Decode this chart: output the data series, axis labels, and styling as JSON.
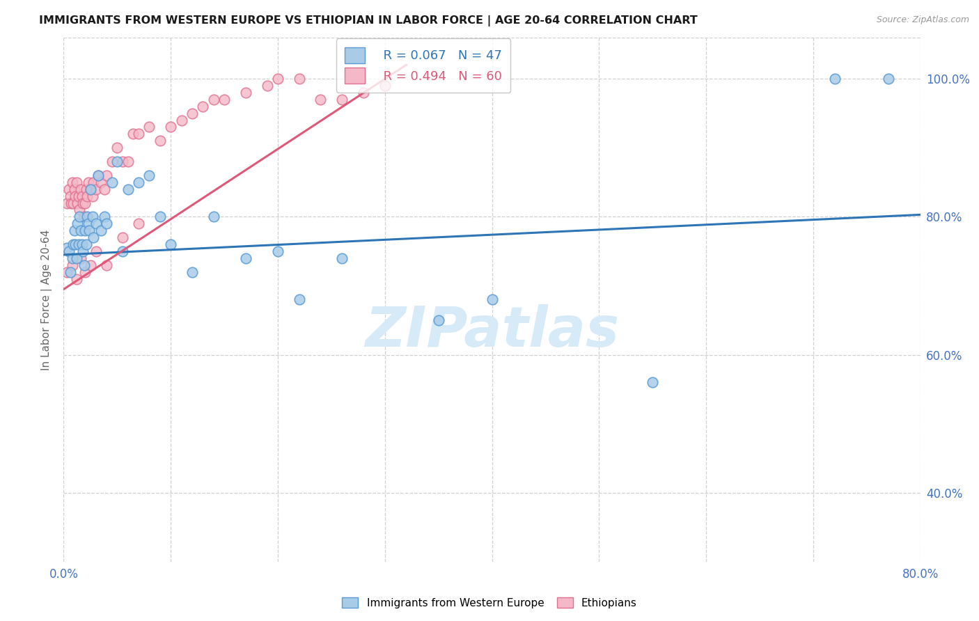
{
  "title": "IMMIGRANTS FROM WESTERN EUROPE VS ETHIOPIAN IN LABOR FORCE | AGE 20-64 CORRELATION CHART",
  "source": "Source: ZipAtlas.com",
  "ylabel": "In Labor Force | Age 20-64",
  "xlim": [
    0.0,
    0.8
  ],
  "ylim": [
    0.3,
    1.06
  ],
  "x_ticks": [
    0.0,
    0.1,
    0.2,
    0.3,
    0.4,
    0.5,
    0.6,
    0.7,
    0.8
  ],
  "x_tick_labels": [
    "0.0%",
    "",
    "",
    "",
    "",
    "",
    "",
    "",
    "80.0%"
  ],
  "y_ticks": [
    0.4,
    0.6,
    0.8,
    1.0
  ],
  "y_tick_labels": [
    "40.0%",
    "60.0%",
    "80.0%",
    "100.0%"
  ],
  "blue_fill": "#a8cce8",
  "blue_edge": "#5b9bd5",
  "pink_fill": "#f4b8c8",
  "pink_edge": "#e07090",
  "blue_line_color": "#2e75b6",
  "pink_line_color": "#e05878",
  "legend_text_blue_color": "#2e75b6",
  "legend_text_pink_color": "#e05878",
  "grid_color": "#d0d0d0",
  "axis_label_color": "#4472c4",
  "ylabel_color": "#666666",
  "title_color": "#1a1a1a",
  "source_color": "#999999",
  "watermark": "ZIPatlas",
  "watermark_color": "#d6eaf8",
  "background_color": "#ffffff",
  "blue_scatter_x": [
    0.003,
    0.005,
    0.006,
    0.008,
    0.009,
    0.01,
    0.011,
    0.012,
    0.013,
    0.014,
    0.015,
    0.016,
    0.017,
    0.018,
    0.019,
    0.02,
    0.021,
    0.022,
    0.023,
    0.024,
    0.025,
    0.027,
    0.028,
    0.03,
    0.032,
    0.035,
    0.038,
    0.04,
    0.045,
    0.05,
    0.055,
    0.06,
    0.07,
    0.08,
    0.09,
    0.1,
    0.12,
    0.14,
    0.17,
    0.2,
    0.22,
    0.26,
    0.35,
    0.4,
    0.55,
    0.72,
    0.77
  ],
  "blue_scatter_y": [
    0.755,
    0.75,
    0.72,
    0.74,
    0.76,
    0.78,
    0.76,
    0.74,
    0.79,
    0.76,
    0.8,
    0.78,
    0.76,
    0.75,
    0.73,
    0.78,
    0.76,
    0.8,
    0.79,
    0.78,
    0.84,
    0.8,
    0.77,
    0.79,
    0.86,
    0.78,
    0.8,
    0.79,
    0.85,
    0.88,
    0.75,
    0.84,
    0.85,
    0.86,
    0.8,
    0.76,
    0.72,
    0.8,
    0.74,
    0.75,
    0.68,
    0.74,
    0.65,
    0.68,
    0.56,
    1.0,
    1.0
  ],
  "pink_scatter_x": [
    0.003,
    0.005,
    0.006,
    0.007,
    0.008,
    0.009,
    0.01,
    0.011,
    0.012,
    0.013,
    0.014,
    0.015,
    0.016,
    0.017,
    0.018,
    0.019,
    0.02,
    0.021,
    0.022,
    0.023,
    0.025,
    0.027,
    0.028,
    0.03,
    0.032,
    0.035,
    0.038,
    0.04,
    0.045,
    0.05,
    0.055,
    0.06,
    0.065,
    0.07,
    0.08,
    0.09,
    0.1,
    0.11,
    0.12,
    0.13,
    0.14,
    0.15,
    0.17,
    0.19,
    0.2,
    0.22,
    0.24,
    0.26,
    0.28,
    0.3,
    0.003,
    0.008,
    0.012,
    0.016,
    0.02,
    0.025,
    0.03,
    0.04,
    0.055,
    0.07
  ],
  "pink_scatter_y": [
    0.82,
    0.84,
    0.83,
    0.82,
    0.85,
    0.82,
    0.84,
    0.83,
    0.85,
    0.82,
    0.83,
    0.81,
    0.84,
    0.83,
    0.82,
    0.8,
    0.82,
    0.84,
    0.83,
    0.85,
    0.84,
    0.83,
    0.85,
    0.84,
    0.86,
    0.85,
    0.84,
    0.86,
    0.88,
    0.9,
    0.88,
    0.88,
    0.92,
    0.92,
    0.93,
    0.91,
    0.93,
    0.94,
    0.95,
    0.96,
    0.97,
    0.97,
    0.98,
    0.99,
    1.0,
    1.0,
    0.97,
    0.97,
    0.98,
    0.99,
    0.72,
    0.73,
    0.71,
    0.74,
    0.72,
    0.73,
    0.75,
    0.73,
    0.77,
    0.79
  ],
  "blue_line_x0": 0.0,
  "blue_line_x1": 0.8,
  "blue_line_y0": 0.745,
  "blue_line_y1": 0.803,
  "pink_line_x0": 0.0,
  "pink_line_x1": 0.32,
  "pink_line_y0": 0.695,
  "pink_line_y1": 1.02
}
